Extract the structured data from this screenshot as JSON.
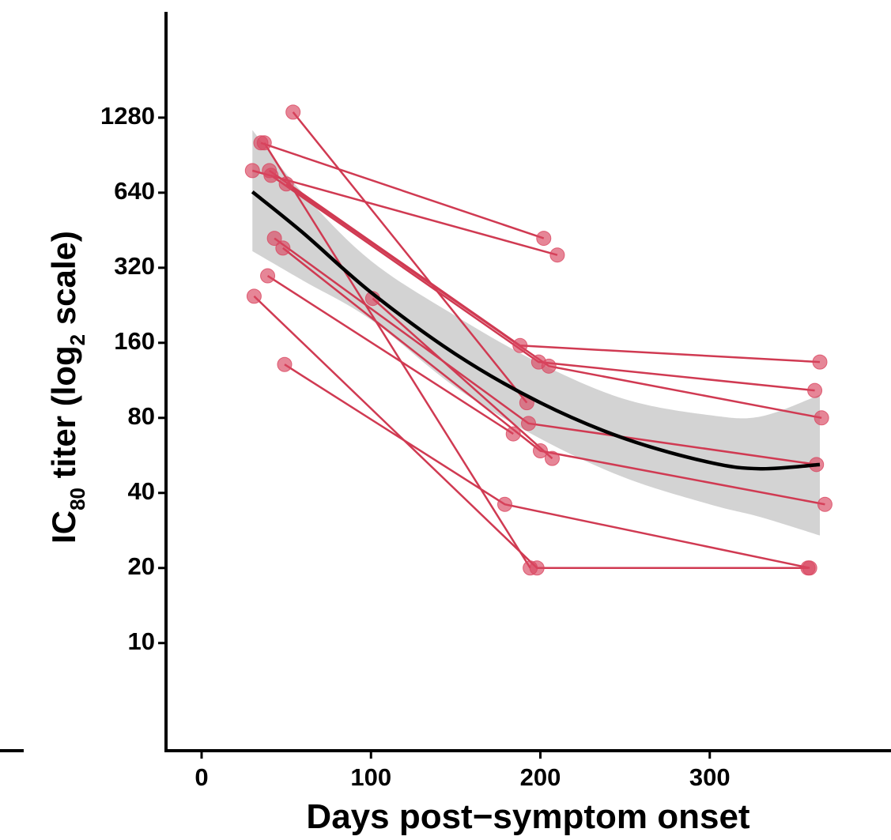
{
  "chart_data": {
    "type": "paired-scatter",
    "x_label": "Days post−symptom onset",
    "y_label": [
      "IC",
      "80",
      " titer (log",
      "2",
      " scale)"
    ],
    "xlim": [
      -21,
      407
    ],
    "xticks": [
      0,
      100,
      200,
      300
    ],
    "ylim": [
      3.7,
      3400
    ],
    "yticks": [
      10,
      20,
      40,
      80,
      160,
      320,
      640,
      1280
    ],
    "y_log_base": 2,
    "point_color": "#d9455f",
    "line_color": "#d03a52",
    "subjects": [
      {
        "x": [
          54,
          192
        ],
        "values": [
          1347,
          92
        ]
      },
      {
        "x": [
          35,
          202
        ],
        "values": [
          1014,
          420
        ]
      },
      {
        "x": [
          37,
          194
        ],
        "values": [
          1014,
          20
        ]
      },
      {
        "x": [
          30,
          210
        ],
        "values": [
          785,
          360
        ]
      },
      {
        "x": [
          40,
          188,
          365
        ],
        "values": [
          785,
          156,
          134
        ]
      },
      {
        "x": [
          41,
          199,
          362
        ],
        "values": [
          751,
          134,
          103
        ]
      },
      {
        "x": [
          50,
          205,
          366
        ],
        "values": [
          694,
          129,
          80
        ]
      },
      {
        "x": [
          43,
          193,
          363
        ],
        "values": [
          420,
          76,
          52
        ]
      },
      {
        "x": [
          48,
          200,
          368
        ],
        "values": [
          384,
          59,
          36
        ]
      },
      {
        "x": [
          39,
          184
        ],
        "values": [
          297,
          69
        ]
      },
      {
        "x": [
          101,
          207
        ],
        "values": [
          241,
          55
        ]
      },
      {
        "x": [
          31,
          198,
          358
        ],
        "values": [
          246,
          20,
          20
        ]
      },
      {
        "x": [
          49,
          179,
          359
        ],
        "values": [
          131,
          36,
          20
        ]
      }
    ],
    "fit": {
      "color": "#000000",
      "band_color": "#d3d3d3",
      "x": [
        30,
        60,
        100,
        150,
        200,
        250,
        300,
        330,
        365
      ],
      "values": [
        645,
        441,
        255,
        144,
        92,
        66,
        53,
        50,
        52
      ],
      "upper": [
        1141,
        635,
        341,
        205,
        132,
        95,
        82,
        81,
        99
      ],
      "lower": [
        373,
        284,
        198,
        106,
        66,
        46,
        36,
        32,
        27
      ]
    }
  }
}
